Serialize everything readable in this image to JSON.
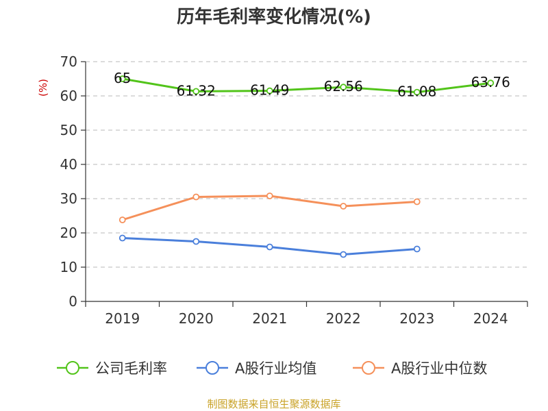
{
  "chart_data": {
    "type": "line",
    "title": "历年毛利率变化情况(%)",
    "ylabel": "(%)",
    "xlabel": "",
    "ylim": [
      0,
      70
    ],
    "yticks": [
      0,
      10,
      20,
      30,
      40,
      50,
      60,
      70
    ],
    "grid": true,
    "legend_position": "bottom",
    "categories": [
      "2019",
      "2020",
      "2021",
      "2022",
      "2023",
      "2024"
    ],
    "series": [
      {
        "name": "公司毛利率",
        "color": "#52c41a",
        "values": [
          65,
          61.32,
          61.49,
          62.56,
          61.08,
          63.76
        ],
        "labels": [
          "65",
          "61.32",
          "61.49",
          "62.56",
          "61.08",
          "63.76"
        ]
      },
      {
        "name": "A股行业均值",
        "color": "#4a7fdb",
        "values": [
          18.5,
          17.5,
          15.9,
          13.7,
          15.3,
          null
        ]
      },
      {
        "name": "A股行业中位数",
        "color": "#f5905a",
        "values": [
          23.8,
          30.5,
          30.8,
          27.8,
          29.1,
          null
        ]
      }
    ]
  },
  "footer": {
    "source": "制图数据来自恒生聚源数据库"
  }
}
